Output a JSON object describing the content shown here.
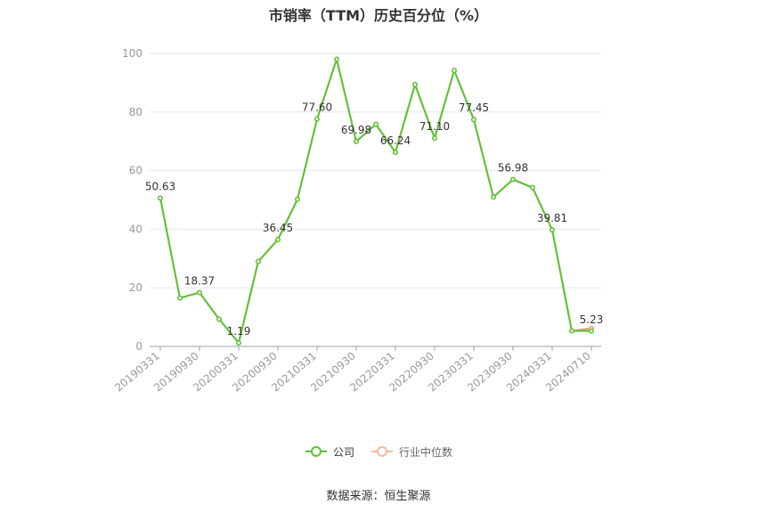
{
  "title": "市销率（TTM）历史百分位（%）",
  "source": "数据来源：恒生聚源",
  "colors": {
    "company": "#5bc236",
    "industry": "#e8935a",
    "grid": "#e4e6ee",
    "axis_text": "#999999",
    "label": "#333333"
  },
  "chart_data": {
    "type": "line",
    "x": [
      "20190331",
      "20190630",
      "20190930",
      "20191231",
      "20200331",
      "20200630",
      "20200930",
      "20201231",
      "20210331",
      "20210630",
      "20210930",
      "20211231",
      "20220331",
      "20220630",
      "20220930",
      "20221231",
      "20230331",
      "20230630",
      "20230930",
      "20231231",
      "20240331",
      "20240630",
      "20240710"
    ],
    "x_tick_labels": [
      "20190331",
      "20190930",
      "20200331",
      "20200930",
      "20210331",
      "20210930",
      "20220331",
      "20220930",
      "20230331",
      "20230930",
      "20240331",
      "20240710"
    ],
    "ylim": [
      0,
      100
    ],
    "y_ticks": [
      0,
      20,
      40,
      60,
      80,
      100
    ],
    "grid": true,
    "legend_position": "bottom",
    "series": [
      {
        "name": "公司",
        "color": "#5bc236",
        "values": [
          50.63,
          16.5,
          18.37,
          9.3,
          1.19,
          29.0,
          36.45,
          50.2,
          77.6,
          98.0,
          69.98,
          75.8,
          66.24,
          89.4,
          71.1,
          94.2,
          77.45,
          51.0,
          56.98,
          54.2,
          39.81,
          5.3,
          5.23
        ]
      },
      {
        "name": "行业中位数",
        "color": "#e8935a",
        "values": [
          50.63,
          16.5,
          18.37,
          9.3,
          1.19,
          29.0,
          36.45,
          50.2,
          77.6,
          98.0,
          69.98,
          75.8,
          66.24,
          89.4,
          71.1,
          94.2,
          77.45,
          51.0,
          56.98,
          54.2,
          39.81,
          5.3,
          6.1
        ]
      }
    ],
    "data_labels": [
      {
        "index": 0,
        "text": "50.63"
      },
      {
        "index": 2,
        "text": "18.37"
      },
      {
        "index": 4,
        "text": "1.19"
      },
      {
        "index": 6,
        "text": "36.45"
      },
      {
        "index": 8,
        "text": "77.60"
      },
      {
        "index": 10,
        "text": "69.98"
      },
      {
        "index": 12,
        "text": "66.24"
      },
      {
        "index": 14,
        "text": "71.10"
      },
      {
        "index": 16,
        "text": "77.45"
      },
      {
        "index": 18,
        "text": "56.98"
      },
      {
        "index": 20,
        "text": "39.81"
      },
      {
        "index": 22,
        "text": "5.23"
      }
    ]
  }
}
